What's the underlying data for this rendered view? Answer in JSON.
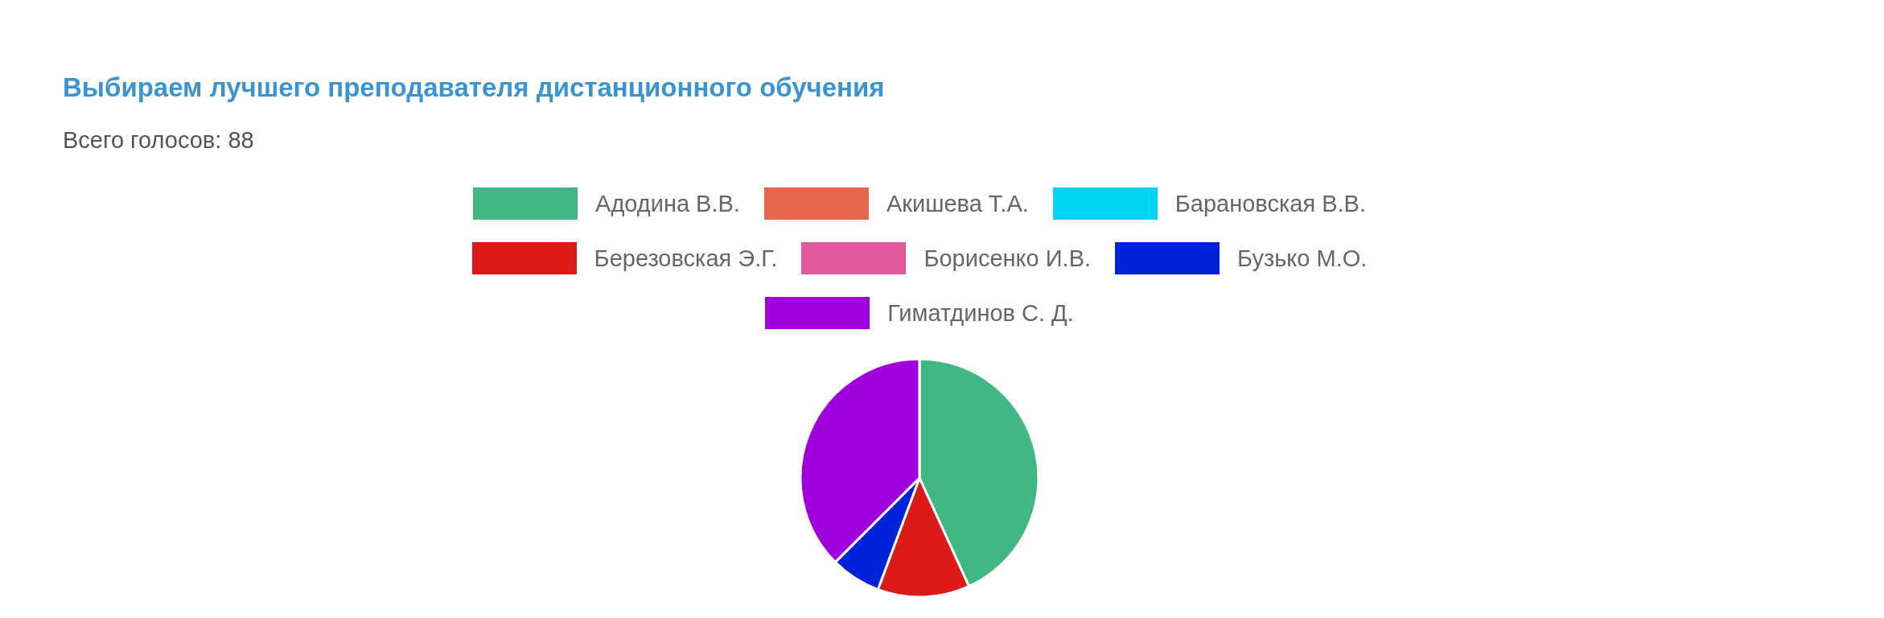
{
  "chart_data": {
    "type": "pie",
    "title": "Выбираем лучшего преподавателя дистанционного обучения",
    "subtitle": "Всего голосов: 88",
    "categories": [
      "Адодина В.В.",
      "Акишева Т.А.",
      "Барановская В.В.",
      "Березовская Э.Г.",
      "Борисенко И.В.",
      "Бузько М.О.",
      "Гиматдинов С. Д."
    ],
    "values": [
      43.18,
      0,
      0,
      12.5,
      0,
      6.82,
      37.5
    ],
    "colors": [
      "#41b883",
      "#e4664f",
      "#00d4f5",
      "#dc1a1a",
      "#e05a9b",
      "#0022d8",
      "#a000dc"
    ],
    "legend": "top"
  }
}
